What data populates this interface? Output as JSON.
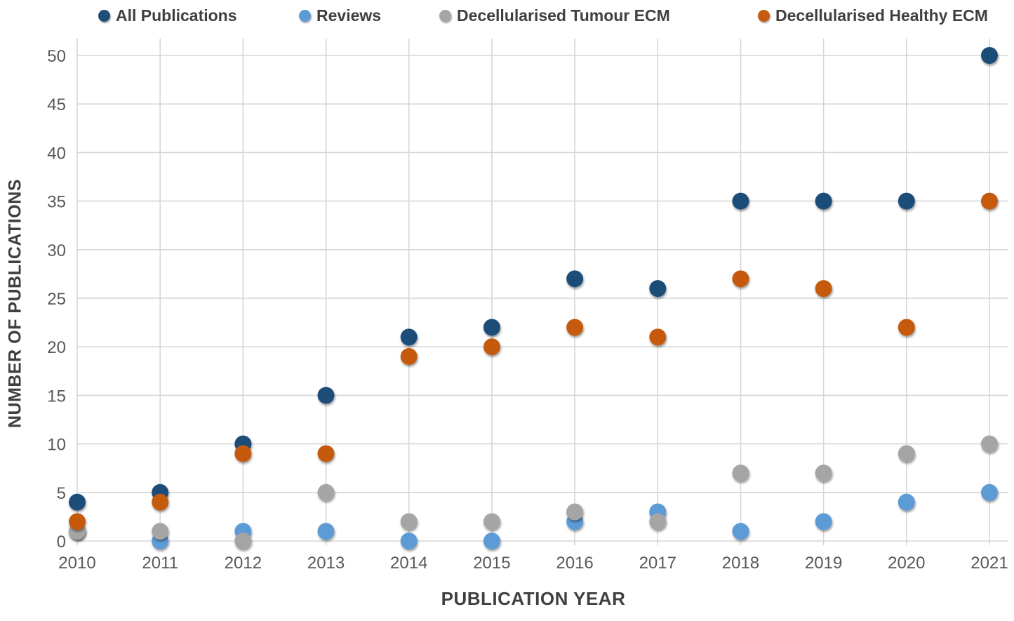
{
  "legend": [
    {
      "label": "All Publications",
      "color": "#1F4E79"
    },
    {
      "label": "Reviews",
      "color": "#5B9BD5"
    },
    {
      "label": "Decellularised Tumour ECM",
      "color": "#A5A5A5"
    },
    {
      "label": "Decellularised Healthy ECM",
      "color": "#C55A11"
    }
  ],
  "axes": {
    "x_title": "PUBLICATION YEAR",
    "y_title": "NUMBER OF PUBLICATIONS"
  },
  "chart_data": {
    "type": "scatter",
    "title": "",
    "xlabel": "PUBLICATION YEAR",
    "ylabel": "NUMBER OF PUBLICATIONS",
    "categories": [
      "2010",
      "2011",
      "2012",
      "2013",
      "2014",
      "2015",
      "2016",
      "2017",
      "2018",
      "2019",
      "2020",
      "2021"
    ],
    "series": [
      {
        "name": "All Publications",
        "color": "#1F4E79",
        "values": [
          4,
          5,
          10,
          15,
          21,
          22,
          27,
          26,
          35,
          35,
          35,
          50
        ]
      },
      {
        "name": "Reviews",
        "color": "#5B9BD5",
        "values": [
          1,
          0,
          1,
          1,
          0,
          0,
          2,
          3,
          1,
          2,
          4,
          5
        ]
      },
      {
        "name": "Decellularised Tumour ECM",
        "color": "#A5A5A5",
        "values": [
          1,
          1,
          0,
          5,
          2,
          2,
          3,
          2,
          7,
          7,
          9,
          10
        ]
      },
      {
        "name": "Decellularised Healthy ECM",
        "color": "#C55A11",
        "values": [
          2,
          4,
          9,
          9,
          19,
          20,
          22,
          21,
          27,
          26,
          22,
          35
        ]
      }
    ],
    "ylim": [
      0,
      50
    ],
    "ytick_step": 5,
    "yticks": [
      0,
      5,
      10,
      15,
      20,
      25,
      30,
      35,
      40,
      45,
      50
    ],
    "grid": true,
    "legend_position": "top"
  }
}
